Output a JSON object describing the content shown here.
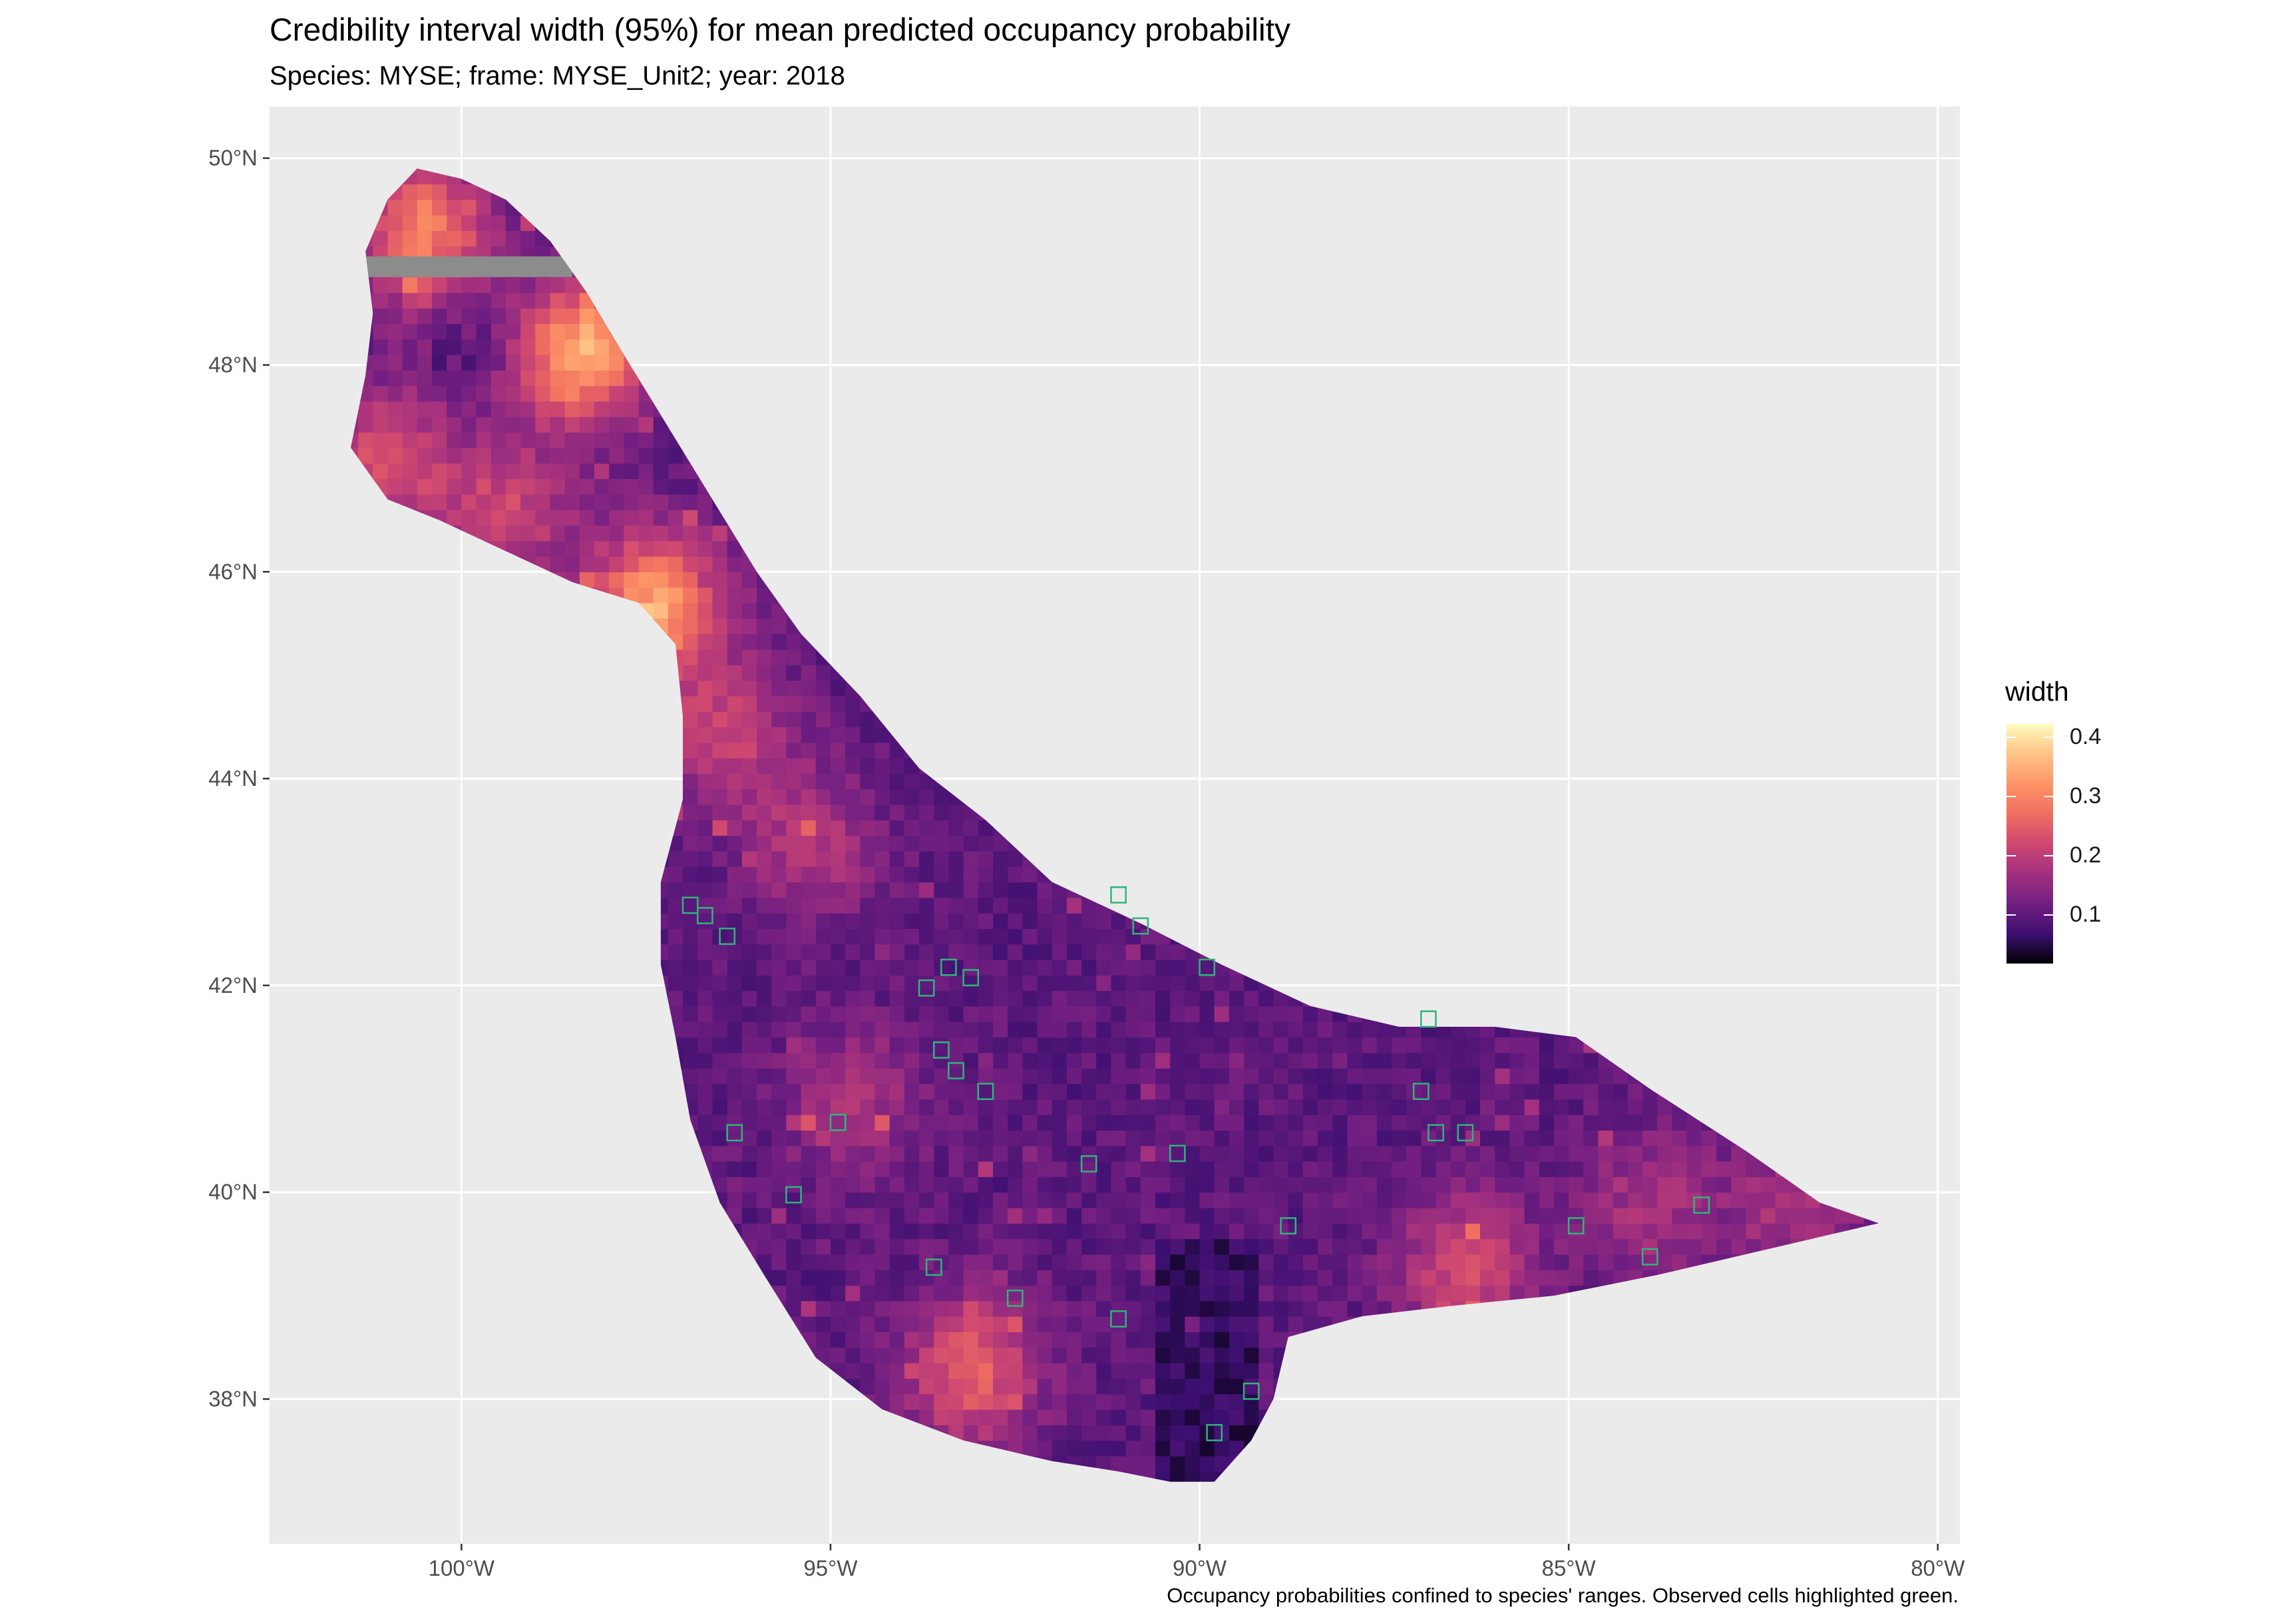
{
  "title": "Credibility interval width (95%) for mean predicted occupancy probability",
  "subtitle": "Species: MYSE; frame: MYSE_Unit2; year: 2018",
  "caption": "Occupancy probabilities confined to species' ranges. Observed cells highlighted green.",
  "legend": {
    "title": "width",
    "labels": [
      "0.4",
      "0.3",
      "0.2",
      "0.1"
    ],
    "colors": [
      "#000004",
      "#3b0f70",
      "#721f81",
      "#a3307e",
      "#cf4870",
      "#ef6c60",
      "#fd9567",
      "#fec488",
      "#fcfdbf"
    ]
  },
  "axes": {
    "x": {
      "ticks": [
        -100,
        -95,
        -90,
        -85,
        -80
      ],
      "labels": [
        "100°W",
        "95°W",
        "90°W",
        "85°W",
        "80°W"
      ],
      "range": [
        -102.6,
        -79.7
      ]
    },
    "y": {
      "ticks": [
        38,
        40,
        42,
        44,
        46,
        48,
        50
      ],
      "labels": [
        "38°N",
        "40°N",
        "42°N",
        "44°N",
        "46°N",
        "48°N",
        "50°N"
      ],
      "range": [
        36.6,
        50.5
      ]
    }
  },
  "map": {
    "background": "#ebebeb",
    "grid_color": "#ffffff",
    "observed_outline_color": "#2fb57a",
    "missing_cell_color": "#8c8c8c",
    "region_outline": [
      [
        -100.6,
        49.9
      ],
      [
        -100.0,
        49.8
      ],
      [
        -99.4,
        49.6
      ],
      [
        -98.8,
        49.2
      ],
      [
        -98.3,
        48.7
      ],
      [
        -97.8,
        48.1
      ],
      [
        -97.2,
        47.4
      ],
      [
        -96.6,
        46.7
      ],
      [
        -96.0,
        46.0
      ],
      [
        -95.4,
        45.4
      ],
      [
        -94.6,
        44.8
      ],
      [
        -93.8,
        44.1
      ],
      [
        -92.9,
        43.6
      ],
      [
        -92.0,
        43.0
      ],
      [
        -90.8,
        42.6
      ],
      [
        -89.7,
        42.2
      ],
      [
        -88.5,
        41.8
      ],
      [
        -87.3,
        41.6
      ],
      [
        -86.0,
        41.6
      ],
      [
        -84.9,
        41.5
      ],
      [
        -83.9,
        41.0
      ],
      [
        -82.6,
        40.4
      ],
      [
        -81.6,
        39.9
      ],
      [
        -80.8,
        39.7
      ],
      [
        -81.4,
        39.6
      ],
      [
        -82.6,
        39.4
      ],
      [
        -83.8,
        39.2
      ],
      [
        -85.2,
        39.0
      ],
      [
        -86.6,
        38.9
      ],
      [
        -87.8,
        38.8
      ],
      [
        -88.8,
        38.6
      ],
      [
        -89.0,
        38.0
      ],
      [
        -89.3,
        37.6
      ],
      [
        -89.8,
        37.2
      ],
      [
        -90.4,
        37.2
      ],
      [
        -91.1,
        37.3
      ],
      [
        -92.0,
        37.4
      ],
      [
        -93.2,
        37.6
      ],
      [
        -94.3,
        37.9
      ],
      [
        -95.2,
        38.4
      ],
      [
        -95.9,
        39.2
      ],
      [
        -96.5,
        39.9
      ],
      [
        -96.9,
        40.7
      ],
      [
        -97.1,
        41.5
      ],
      [
        -97.3,
        42.2
      ],
      [
        -97.3,
        43.0
      ],
      [
        -97.0,
        43.8
      ],
      [
        -97.0,
        44.6
      ],
      [
        -97.1,
        45.3
      ],
      [
        -97.6,
        45.7
      ],
      [
        -98.5,
        45.9
      ],
      [
        -99.4,
        46.2
      ],
      [
        -100.3,
        46.5
      ],
      [
        -101.0,
        46.7
      ],
      [
        -101.5,
        47.2
      ],
      [
        -101.3,
        47.9
      ],
      [
        -101.2,
        48.5
      ],
      [
        -101.3,
        49.1
      ],
      [
        -101.0,
        49.6
      ]
    ],
    "hotspots": [
      {
        "lon": -101.1,
        "lat": 47.0,
        "level": 0.22
      },
      {
        "lon": -99.5,
        "lat": 46.5,
        "level": 0.2
      },
      {
        "lon": -98.5,
        "lat": 48.1,
        "level": 0.35
      },
      {
        "lon": -97.5,
        "lat": 45.6,
        "level": 0.32
      },
      {
        "lon": -96.5,
        "lat": 44.4,
        "level": 0.19
      },
      {
        "lon": -95.4,
        "lat": 43.3,
        "level": 0.17
      },
      {
        "lon": -93.2,
        "lat": 38.2,
        "level": 0.24
      },
      {
        "lon": -86.5,
        "lat": 39.2,
        "level": 0.21
      },
      {
        "lon": -84.0,
        "lat": 39.8,
        "level": 0.16
      },
      {
        "lon": -82.0,
        "lat": 39.8,
        "level": 0.16
      },
      {
        "lon": -100.5,
        "lat": 49.2,
        "level": 0.3
      },
      {
        "lon": -94.8,
        "lat": 40.8,
        "level": 0.16
      }
    ],
    "observed_cells": [
      [
        -97.0,
        42.7
      ],
      [
        -96.8,
        42.6
      ],
      [
        -96.5,
        42.4
      ],
      [
        -93.5,
        42.1
      ],
      [
        -93.2,
        42.0
      ],
      [
        -93.8,
        41.9
      ],
      [
        -93.6,
        41.3
      ],
      [
        -93.4,
        41.1
      ],
      [
        -93.0,
        40.9
      ],
      [
        -91.2,
        42.8
      ],
      [
        -90.9,
        42.5
      ],
      [
        -90.0,
        42.1
      ],
      [
        -95.0,
        40.6
      ],
      [
        -95.6,
        39.9
      ],
      [
        -96.4,
        40.5
      ],
      [
        -93.7,
        39.2
      ],
      [
        -87.0,
        41.6
      ],
      [
        -87.1,
        40.9
      ],
      [
        -86.9,
        40.5
      ],
      [
        -86.5,
        40.5
      ],
      [
        -84.0,
        39.3
      ],
      [
        -85.0,
        39.6
      ],
      [
        -89.9,
        37.6
      ],
      [
        -89.4,
        38.0
      ],
      [
        -91.2,
        38.7
      ],
      [
        -92.6,
        38.9
      ],
      [
        -90.4,
        40.3
      ],
      [
        -91.6,
        40.2
      ],
      [
        -88.9,
        39.6
      ],
      [
        -83.3,
        39.8
      ]
    ]
  }
}
